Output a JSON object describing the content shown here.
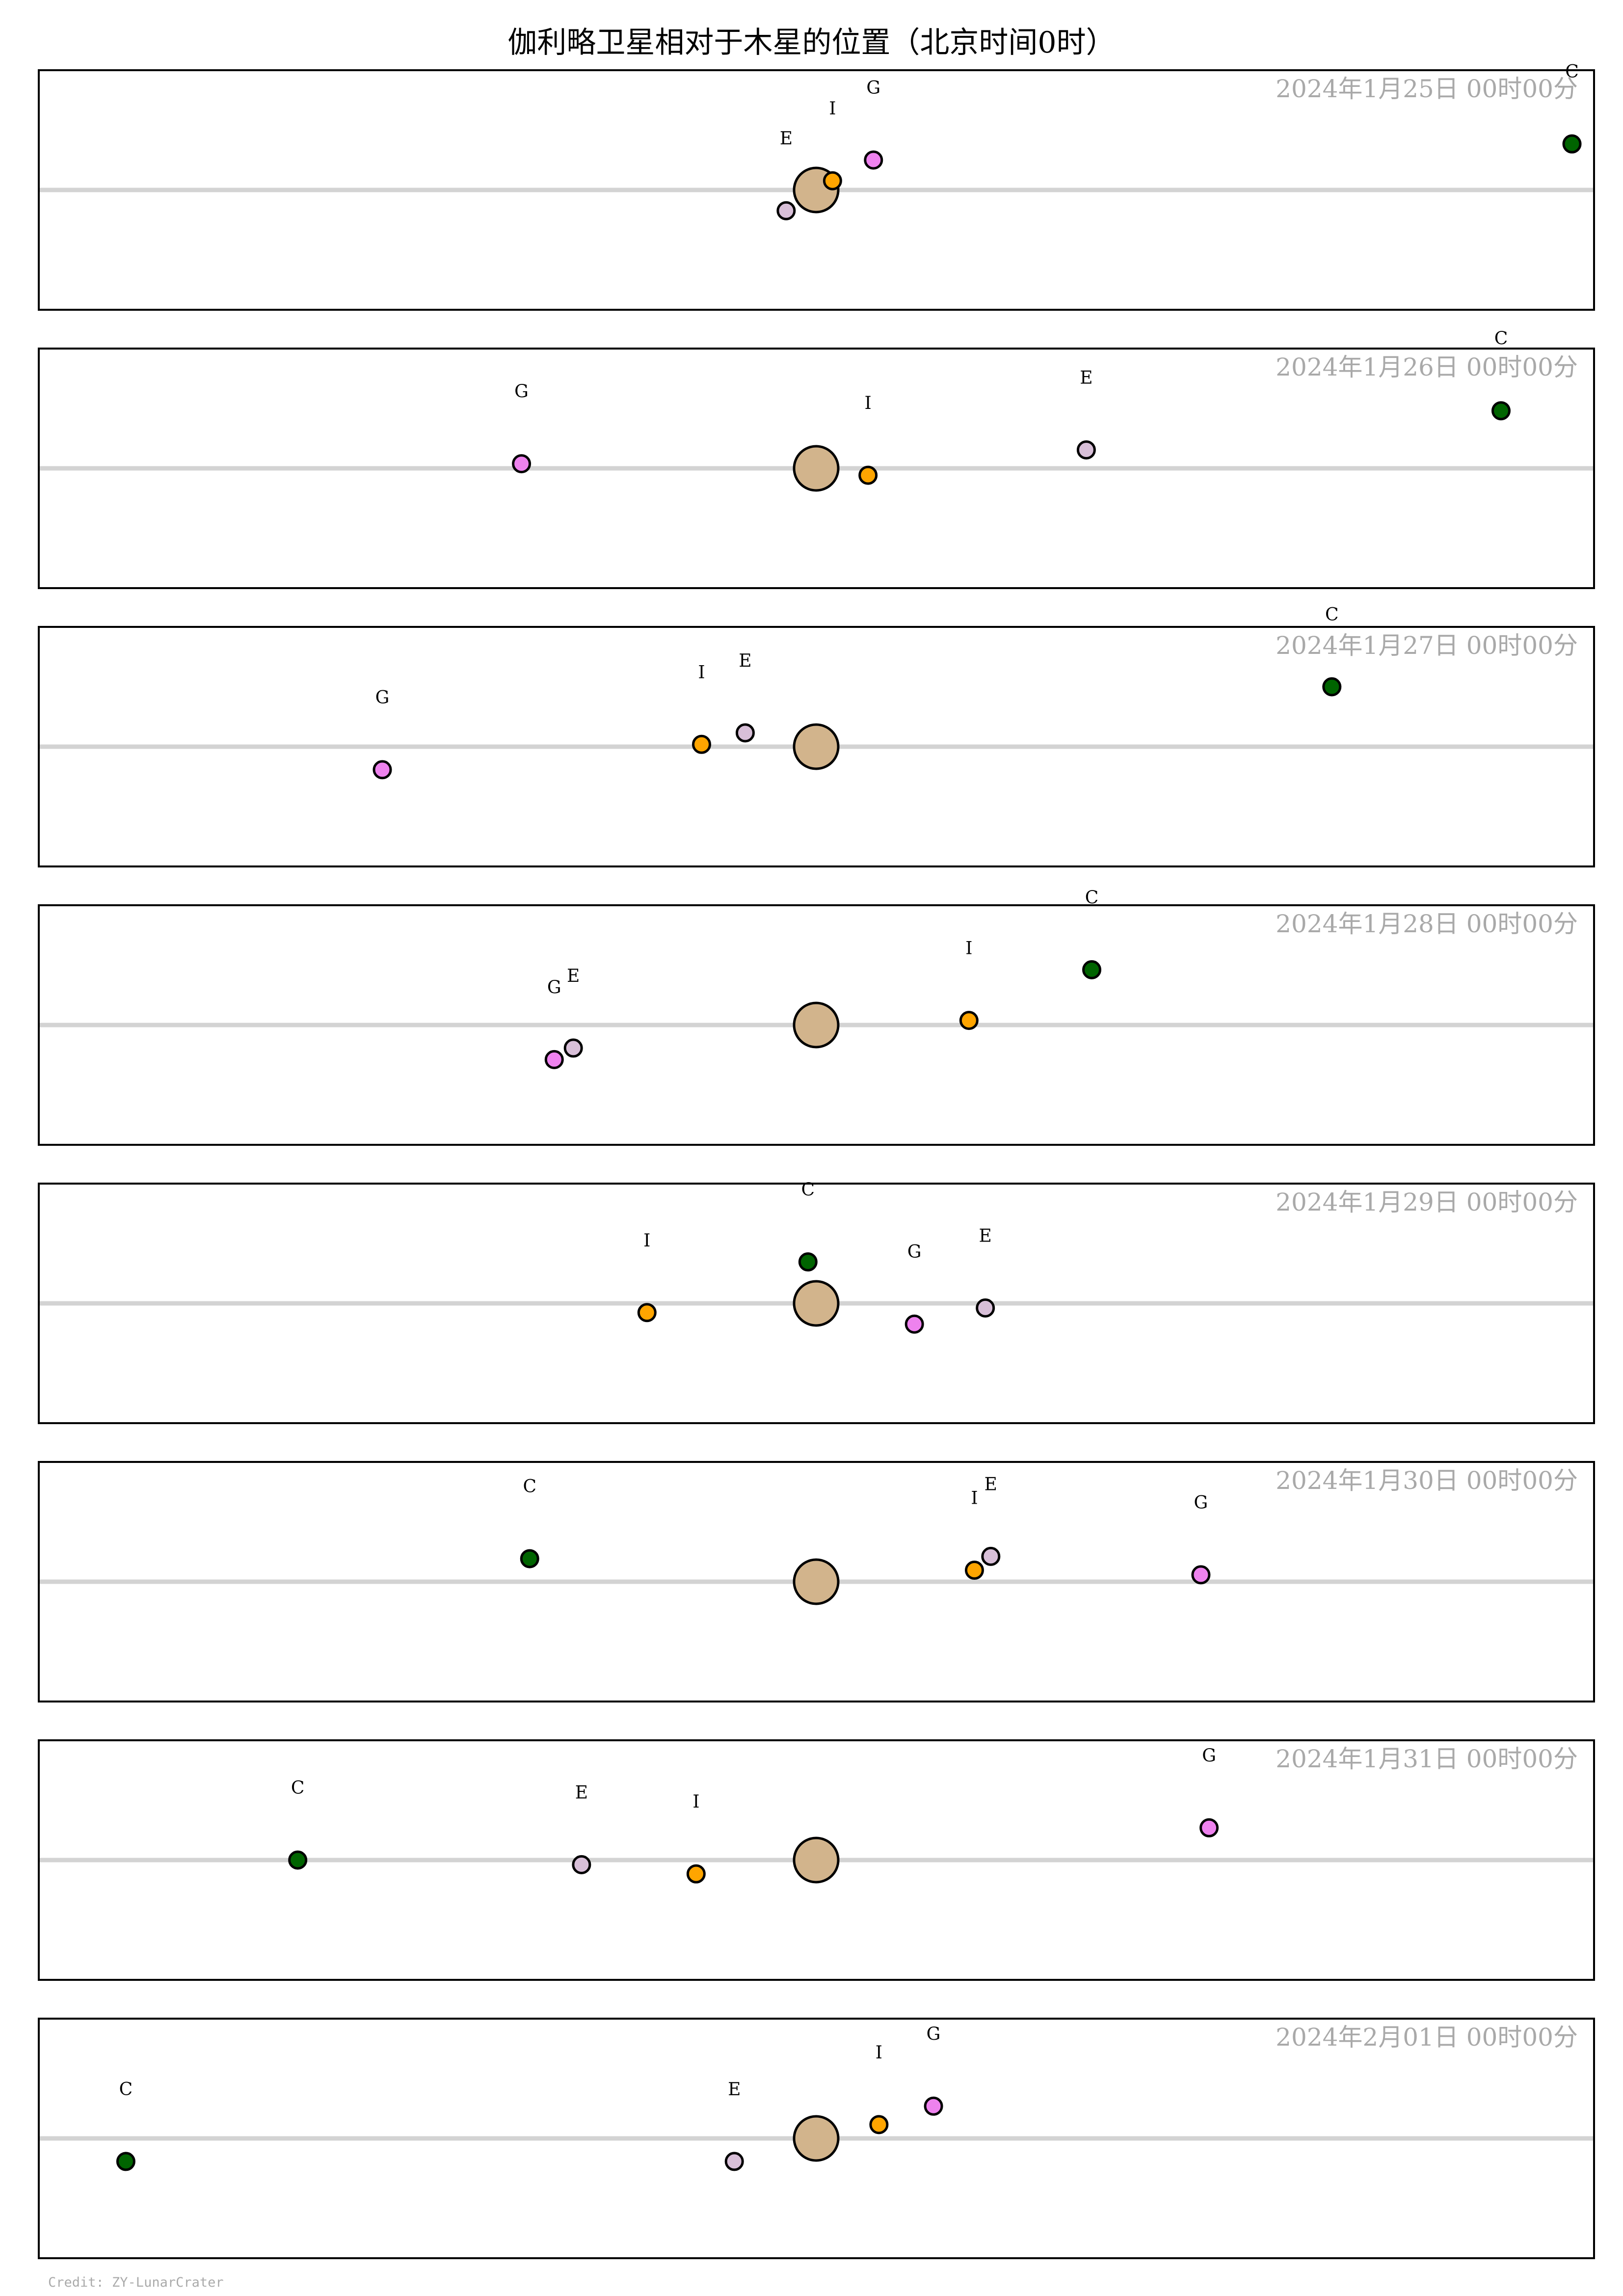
{
  "title": "伽利略卫星相对于木星的位置（北京时间0时）",
  "credit": "Credit: ZY-LunarCrater",
  "colors": {
    "jupiter": "#d2b48c",
    "Io": "#ffa500",
    "Europa": "#d8bfd8",
    "Ganymede": "#ee82ee",
    "Callisto": "#006400",
    "axis_line": "#d3d3d3",
    "frame": "#000000",
    "date_label": "#a9a9a9"
  },
  "chart_data": {
    "type": "scatter",
    "moons": [
      {
        "key": "I",
        "name": "Io"
      },
      {
        "key": "E",
        "name": "Europa"
      },
      {
        "key": "G",
        "name": "Ganymede"
      },
      {
        "key": "C",
        "name": "Callisto"
      }
    ],
    "xlim": [
      -28.5,
      28.5
    ],
    "ylim": [
      -2.6,
      2.6
    ],
    "grid": false,
    "panels": [
      {
        "date_label": "2024年1月25日  00时00分",
        "bodies": [
          {
            "label": "E",
            "moon": "Europa",
            "x": -1.1,
            "y": -0.45
          },
          {
            "label": "I",
            "moon": "Io",
            "x": 0.6,
            "y": 0.2
          },
          {
            "label": "G",
            "moon": "Ganymede",
            "x": 2.1,
            "y": 0.65
          },
          {
            "label": "C",
            "moon": "Callisto",
            "x": 27.7,
            "y": 1.0
          }
        ]
      },
      {
        "date_label": "2024年1月26日  00时00分",
        "bodies": [
          {
            "label": "G",
            "moon": "Ganymede",
            "x": -10.8,
            "y": 0.1
          },
          {
            "label": "I",
            "moon": "Io",
            "x": 1.9,
            "y": -0.15
          },
          {
            "label": "E",
            "moon": "Europa",
            "x": 9.9,
            "y": 0.4
          },
          {
            "label": "C",
            "moon": "Callisto",
            "x": 25.1,
            "y": 1.25
          }
        ]
      },
      {
        "date_label": "2024年1月27日  00时00分",
        "bodies": [
          {
            "label": "G",
            "moon": "Ganymede",
            "x": -15.9,
            "y": -0.5
          },
          {
            "label": "I",
            "moon": "Io",
            "x": -4.2,
            "y": 0.05
          },
          {
            "label": "E",
            "moon": "Europa",
            "x": -2.6,
            "y": 0.3
          },
          {
            "label": "C",
            "moon": "Callisto",
            "x": 18.9,
            "y": 1.3
          }
        ]
      },
      {
        "date_label": "2024年1月28日  00时00分",
        "bodies": [
          {
            "label": "G",
            "moon": "Ganymede",
            "x": -9.6,
            "y": -0.75
          },
          {
            "label": "E",
            "moon": "Europa",
            "x": -8.9,
            "y": -0.5
          },
          {
            "label": "I",
            "moon": "Io",
            "x": 5.6,
            "y": 0.1
          },
          {
            "label": "C",
            "moon": "Callisto",
            "x": 10.1,
            "y": 1.2
          }
        ]
      },
      {
        "date_label": "2024年1月29日  00时00分",
        "bodies": [
          {
            "label": "I",
            "moon": "Io",
            "x": -6.2,
            "y": -0.2
          },
          {
            "label": "C",
            "moon": "Callisto",
            "x": -0.3,
            "y": 0.9
          },
          {
            "label": "G",
            "moon": "Ganymede",
            "x": 3.6,
            "y": -0.45
          },
          {
            "label": "E",
            "moon": "Europa",
            "x": 6.2,
            "y": -0.1
          }
        ]
      },
      {
        "date_label": "2024年1月30日  00时00分",
        "bodies": [
          {
            "label": "C",
            "moon": "Callisto",
            "x": -10.5,
            "y": 0.5
          },
          {
            "label": "I",
            "moon": "Io",
            "x": 5.8,
            "y": 0.25
          },
          {
            "label": "E",
            "moon": "Europa",
            "x": 6.4,
            "y": 0.55
          },
          {
            "label": "G",
            "moon": "Ganymede",
            "x": 14.1,
            "y": 0.15
          }
        ]
      },
      {
        "date_label": "2024年1月31日  00时00分",
        "bodies": [
          {
            "label": "C",
            "moon": "Callisto",
            "x": -19.0,
            "y": 0.0
          },
          {
            "label": "E",
            "moon": "Europa",
            "x": -8.6,
            "y": -0.1
          },
          {
            "label": "I",
            "moon": "Io",
            "x": -4.4,
            "y": -0.3
          },
          {
            "label": "G",
            "moon": "Ganymede",
            "x": 14.4,
            "y": 0.7
          }
        ]
      },
      {
        "date_label": "2024年2月01日  00时00分",
        "bodies": [
          {
            "label": "C",
            "moon": "Callisto",
            "x": -25.3,
            "y": -0.5
          },
          {
            "label": "E",
            "moon": "Europa",
            "x": -3.0,
            "y": -0.5
          },
          {
            "label": "I",
            "moon": "Io",
            "x": 2.3,
            "y": 0.3
          },
          {
            "label": "G",
            "moon": "Ganymede",
            "x": 4.3,
            "y": 0.7
          }
        ]
      }
    ]
  }
}
